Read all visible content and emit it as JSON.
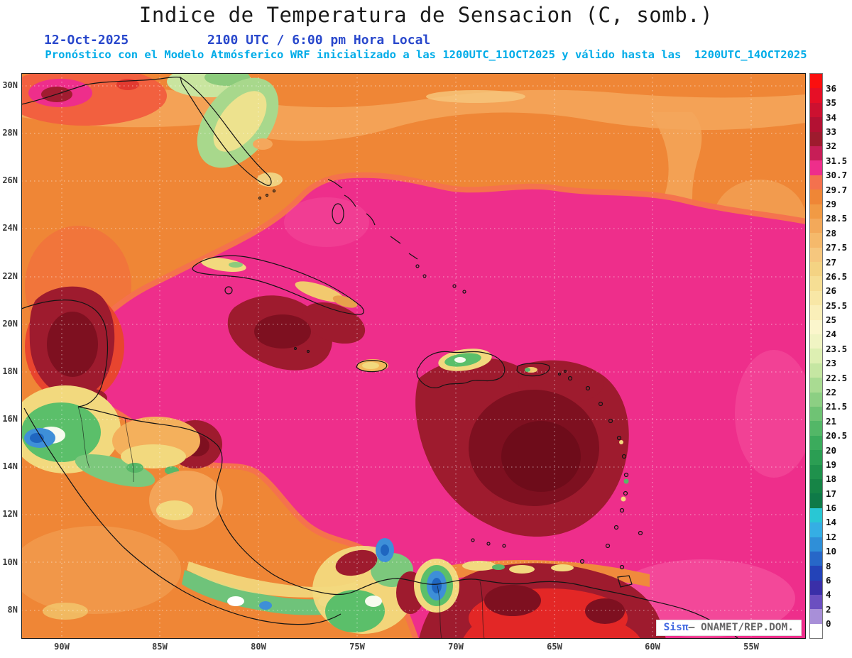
{
  "header": {
    "title": "Indice de Temperatura de Sensacion (C, somb.)",
    "date": "12-Oct-2025",
    "time": "2100 UTC / 6:00 pm Hora Local",
    "forecast_line": "Pronóstico con el Modelo Atmósferico WRF inicializado a las 1200UTC_11OCT2025 y válido hasta las  1200UTC_14OCT2025"
  },
  "map": {
    "lat_labels": [
      "30N",
      "28N",
      "26N",
      "24N",
      "22N",
      "20N",
      "18N",
      "16N",
      "14N",
      "12N",
      "10N",
      "8N"
    ],
    "lon_labels": [
      "90W",
      "85W",
      "80W",
      "75W",
      "70W",
      "65W",
      "60W",
      "55W"
    ]
  },
  "legend": {
    "labels": [
      "36",
      "35",
      "34",
      "33",
      "32",
      "31.5",
      "30.7",
      "29.7",
      "29",
      "28.5",
      "28",
      "27.5",
      "27",
      "26.5",
      "26",
      "25.5",
      "25",
      "24",
      "23.5",
      "23",
      "22.5",
      "22",
      "21.5",
      "21",
      "20.5",
      "20",
      "19",
      "18",
      "17",
      "16",
      "14",
      "12",
      "10",
      "8",
      "6",
      "4",
      "2",
      "0"
    ],
    "colors": [
      "#FB0F0F",
      "#E60F26",
      "#CC1130",
      "#B31133",
      "#9E1B2E",
      "#C71E57",
      "#EE2E8B",
      "#F4714E",
      "#EF8636",
      "#F19A44",
      "#F3A95A",
      "#F5B96B",
      "#F6C77E",
      "#F4D383",
      "#F6DE94",
      "#F8E7A6",
      "#FAEFB9",
      "#FBF6CC",
      "#F0F4C3",
      "#DDEFB2",
      "#C5E6A2",
      "#A9DB92",
      "#8CCF83",
      "#6FC374",
      "#53B767",
      "#3BAB5C",
      "#2B9E53",
      "#1F914C",
      "#168446",
      "#0F7A48",
      "#29C7D4",
      "#35AEE4",
      "#2F8FD8",
      "#2767C8",
      "#2343B8",
      "#3A2FA8",
      "#6B4FC0",
      "#A88FD8",
      "#FFFFFF"
    ]
  },
  "watermark": {
    "brand": "Sisπ",
    "rest": "– ONAMET/REP.DOM."
  },
  "colors": {
    "title_text": "#1a1a1a",
    "date_line": "#2948cc",
    "forecast_line": "#00ACE8",
    "field_base_orange": "#EF8636",
    "field_magenta": "#EE2E8B",
    "field_dark_red": "#9E1B2E"
  }
}
